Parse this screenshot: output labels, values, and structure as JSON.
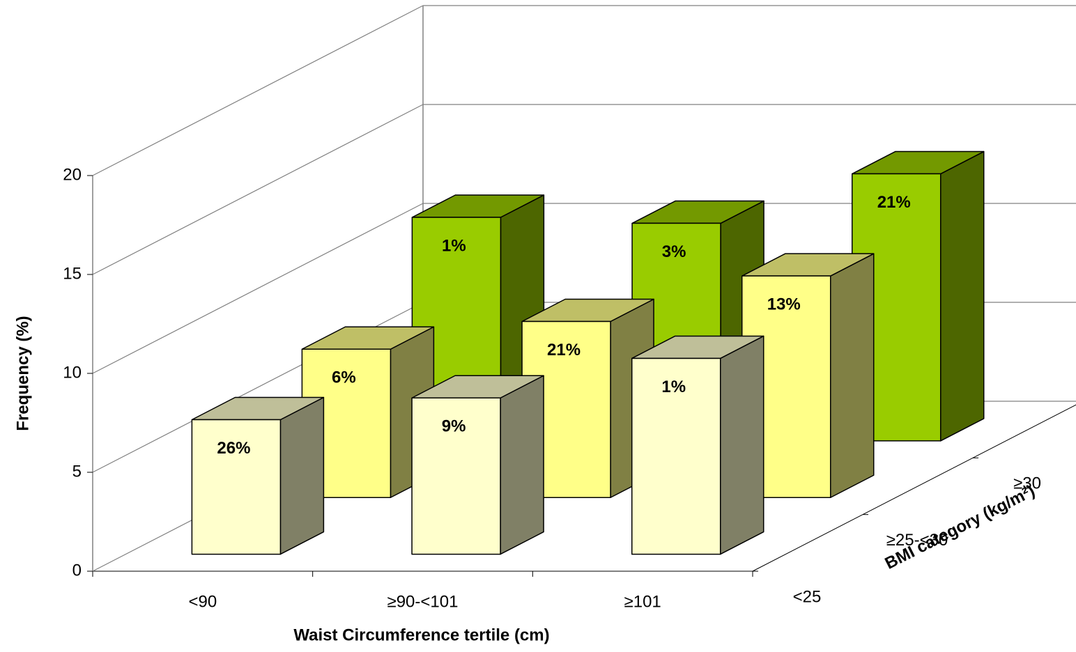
{
  "chart_data": {
    "type": "bar3d",
    "x_label": "Waist Circumference tertile (cm)",
    "y_label": "Frequency (%)",
    "z_label": "BMI category (kg/m²)",
    "categories": [
      "<90",
      "≥90-<101",
      "≥101"
    ],
    "series": [
      {
        "name": "<25",
        "color": "#ffffcc",
        "values": [
          6.8,
          7.9,
          9.9
        ],
        "bar_labels": [
          "26%",
          "9%",
          "1%"
        ]
      },
      {
        "name": "≥25-<30",
        "color": "#ffff88",
        "values": [
          7.5,
          8.9,
          11.2
        ],
        "bar_labels": [
          "6%",
          "21%",
          "13%"
        ]
      },
      {
        "name": "≥30",
        "color": "#99cc00",
        "values": [
          11.3,
          11.0,
          13.5
        ],
        "bar_labels": [
          "1%",
          "3%",
          "21%"
        ]
      }
    ],
    "ylim": [
      0,
      20
    ],
    "yticks": [
      0,
      5,
      10,
      15,
      20
    ],
    "grid": true
  }
}
